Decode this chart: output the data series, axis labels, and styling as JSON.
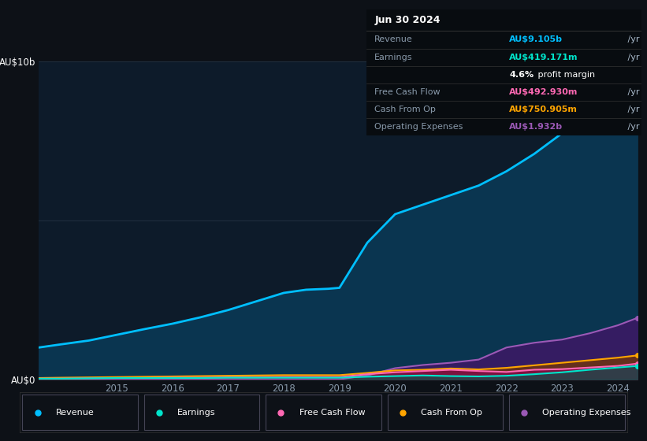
{
  "bg_color": "#0d1117",
  "chart_bg": "#0d1b2a",
  "grid_color": "#2a3a4a",
  "years": [
    2013.6,
    2014.0,
    2014.5,
    2015.0,
    2015.5,
    2016.0,
    2016.5,
    2017.0,
    2017.5,
    2018.0,
    2018.4,
    2018.8,
    2019.0,
    2019.5,
    2020.0,
    2020.5,
    2021.0,
    2021.5,
    2022.0,
    2022.5,
    2023.0,
    2023.5,
    2024.0,
    2024.35
  ],
  "revenue": [
    1.0,
    1.1,
    1.22,
    1.4,
    1.58,
    1.75,
    1.95,
    2.18,
    2.45,
    2.72,
    2.82,
    2.85,
    2.88,
    4.3,
    5.2,
    5.5,
    5.8,
    6.1,
    6.55,
    7.1,
    7.75,
    8.3,
    8.85,
    9.105
  ],
  "earnings": [
    0.02,
    0.02,
    0.03,
    0.04,
    0.04,
    0.04,
    0.04,
    0.05,
    0.05,
    0.05,
    0.05,
    0.05,
    0.05,
    0.08,
    0.1,
    0.12,
    0.1,
    0.09,
    0.11,
    0.16,
    0.22,
    0.3,
    0.37,
    0.419
  ],
  "fcf": [
    0.02,
    0.02,
    0.03,
    0.04,
    0.04,
    0.05,
    0.05,
    0.06,
    0.06,
    0.07,
    0.07,
    0.07,
    0.07,
    0.16,
    0.22,
    0.26,
    0.3,
    0.26,
    0.23,
    0.3,
    0.32,
    0.37,
    0.42,
    0.493
  ],
  "cashfromop": [
    0.04,
    0.05,
    0.06,
    0.07,
    0.08,
    0.09,
    0.1,
    0.11,
    0.12,
    0.13,
    0.13,
    0.13,
    0.13,
    0.2,
    0.28,
    0.3,
    0.34,
    0.31,
    0.36,
    0.44,
    0.52,
    0.6,
    0.68,
    0.751
  ],
  "opex": [
    0.0,
    0.0,
    0.0,
    0.0,
    0.0,
    0.0,
    0.0,
    0.0,
    0.0,
    0.0,
    0.0,
    0.0,
    0.0,
    0.12,
    0.35,
    0.45,
    0.52,
    0.62,
    1.0,
    1.15,
    1.25,
    1.45,
    1.7,
    1.932
  ],
  "revenue_color": "#00bfff",
  "earnings_color": "#00e5cc",
  "fcf_color": "#ff69b4",
  "cashfromop_color": "#ffa500",
  "opex_color": "#9b59b6",
  "revenue_fill": "#0a3550",
  "opex_fill": "#3a1a65",
  "ylim": [
    0,
    10
  ],
  "xlabel_years": [
    2015,
    2016,
    2017,
    2018,
    2019,
    2020,
    2021,
    2022,
    2023,
    2024
  ],
  "info_box": {
    "title": "Jun 30 2024",
    "rows": [
      {
        "label": "Revenue",
        "value": "AU$9.105b /yr",
        "value_color": "#00bfff",
        "label_color": "#8899aa"
      },
      {
        "label": "Earnings",
        "value": "AU$419.171m /yr",
        "value_color": "#00e5cc",
        "label_color": "#8899aa"
      },
      {
        "label": "",
        "value": "4.6% profit margin",
        "value_color": "#ffffff",
        "label_color": "#8899aa"
      },
      {
        "label": "Free Cash Flow",
        "value": "AU$492.930m /yr",
        "value_color": "#ff69b4",
        "label_color": "#8899aa"
      },
      {
        "label": "Cash From Op",
        "value": "AU$750.905m /yr",
        "value_color": "#ffa500",
        "label_color": "#8899aa"
      },
      {
        "label": "Operating Expenses",
        "value": "AU$1.932b /yr",
        "value_color": "#9b59b6",
        "label_color": "#8899aa"
      }
    ]
  },
  "legend": [
    {
      "label": "Revenue",
      "color": "#00bfff"
    },
    {
      "label": "Earnings",
      "color": "#00e5cc"
    },
    {
      "label": "Free Cash Flow",
      "color": "#ff69b4"
    },
    {
      "label": "Cash From Op",
      "color": "#ffa500"
    },
    {
      "label": "Operating Expenses",
      "color": "#9b59b6"
    }
  ]
}
